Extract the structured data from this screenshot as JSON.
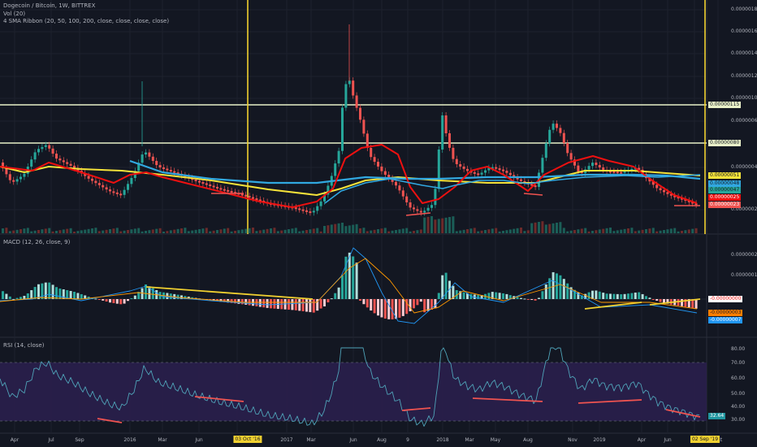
{
  "header": {
    "symbol_line": "Dogecoin / Bitcoin, 1W, BITTREX",
    "vol_label": "Vol (20)",
    "sma_label": "4 SMA Ribbon (20, 50, 100, 200, close, close, close, close)"
  },
  "macd_label": "MACD (12, 26, close, 9)",
  "rsi_label": "RSI (14, close)",
  "colors": {
    "background": "#131722",
    "up": "#26a69a",
    "down": "#ef5350",
    "sma20": "#ef1010",
    "sma50": "#f5e33a",
    "sma100": "#31a8e0",
    "sma200": "#f5e33a",
    "annotation_line": "#f0d030",
    "horizontal_level": "#e8f0c8",
    "rsi_band": "#2a1f4d",
    "rsi_line": "#4fa3b8"
  },
  "price_axis": [
    "0.00000180",
    "0.00000160",
    "0.00000140",
    "0.00000120",
    "0.00000100",
    "0.00000060",
    "0.00000040",
    "0.00000020"
  ],
  "price_badges": [
    {
      "text": "0.00000115",
      "color": "#e8f0c8",
      "fg": "#131722"
    },
    {
      "text": "0.00000080",
      "color": "#e8f0c8",
      "fg": "#131722"
    },
    {
      "text": "0.00000051",
      "color": "#f5e33a",
      "fg": "#131722"
    },
    {
      "text": "0.00000048",
      "color": "#31a8e0",
      "fg": "#131722"
    },
    {
      "text": "0.00000047",
      "color": "#26a69a",
      "fg": "#131722"
    },
    {
      "text": "0.00000025",
      "color": "#ef1010",
      "fg": "#ffffff"
    },
    {
      "text": "0.00000023",
      "color": "#ef5350",
      "fg": "#ffffff"
    }
  ],
  "macd_axis": [
    "0.00000020",
    "0.00000010"
  ],
  "macd_badges": [
    {
      "text": "-0.00000000",
      "color": "#ffffff",
      "fg": "#ef1010"
    },
    {
      "text": "-0.00000003",
      "color": "#ff7f00",
      "fg": "#131722"
    },
    {
      "text": "-0.00000007",
      "color": "#2196f3",
      "fg": "#ffffff"
    }
  ],
  "rsi_axis": [
    "80.00",
    "70.00",
    "60.00",
    "50.00",
    "40.00",
    "30.00"
  ],
  "rsi_badge": "32.64",
  "x_axis": [
    "Apr",
    "Jul",
    "Sep",
    "2016",
    "Mar",
    "Jun",
    "Se",
    "2017",
    "Mar",
    "Jun",
    "Aug",
    "9",
    "2018",
    "Mar",
    "May",
    "Aug",
    "Nov",
    "2019",
    "Apr",
    "Jun",
    "Au",
    "Oct"
  ],
  "x_badges": [
    "03 Oct '16",
    "02 Sep '19"
  ],
  "chart_data": {
    "type": "line",
    "title": "Dogecoin / Bitcoin, 1W, BITTREX",
    "price_series_approx": {
      "name": "DOGE/BTC close",
      "x": [
        "2015-04",
        "2015-07",
        "2015-09",
        "2016-01",
        "2016-03",
        "2016-06",
        "2016-10",
        "2017-01",
        "2017-03",
        "2017-06",
        "2017-08",
        "2017-10",
        "2018-01",
        "2018-03",
        "2018-05",
        "2018-08",
        "2018-11",
        "2019-01",
        "2019-04",
        "2019-06",
        "2019-08",
        "2019-09"
      ],
      "values": [
        4.8e-07,
        6.8e-07,
        5.2e-07,
        4.2e-07,
        5.5e-07,
        4e-07,
        3.5e-07,
        2.6e-07,
        2e-07,
        1.22e-06,
        6.8e-07,
        4.5e-07,
        5e-07,
        5.5e-07,
        4.8e-07,
        4e-07,
        5.6e-07,
        5.5e-07,
        5e-07,
        4e-07,
        3e-07,
        2.3e-07
      ]
    },
    "horizontal_levels": [
      1.15e-06,
      8e-07
    ],
    "vertical_markers": [
      "03 Oct '16",
      "02 Sep '19"
    ],
    "rsi_levels": [
      70,
      30
    ],
    "last_rsi": 32.64
  }
}
